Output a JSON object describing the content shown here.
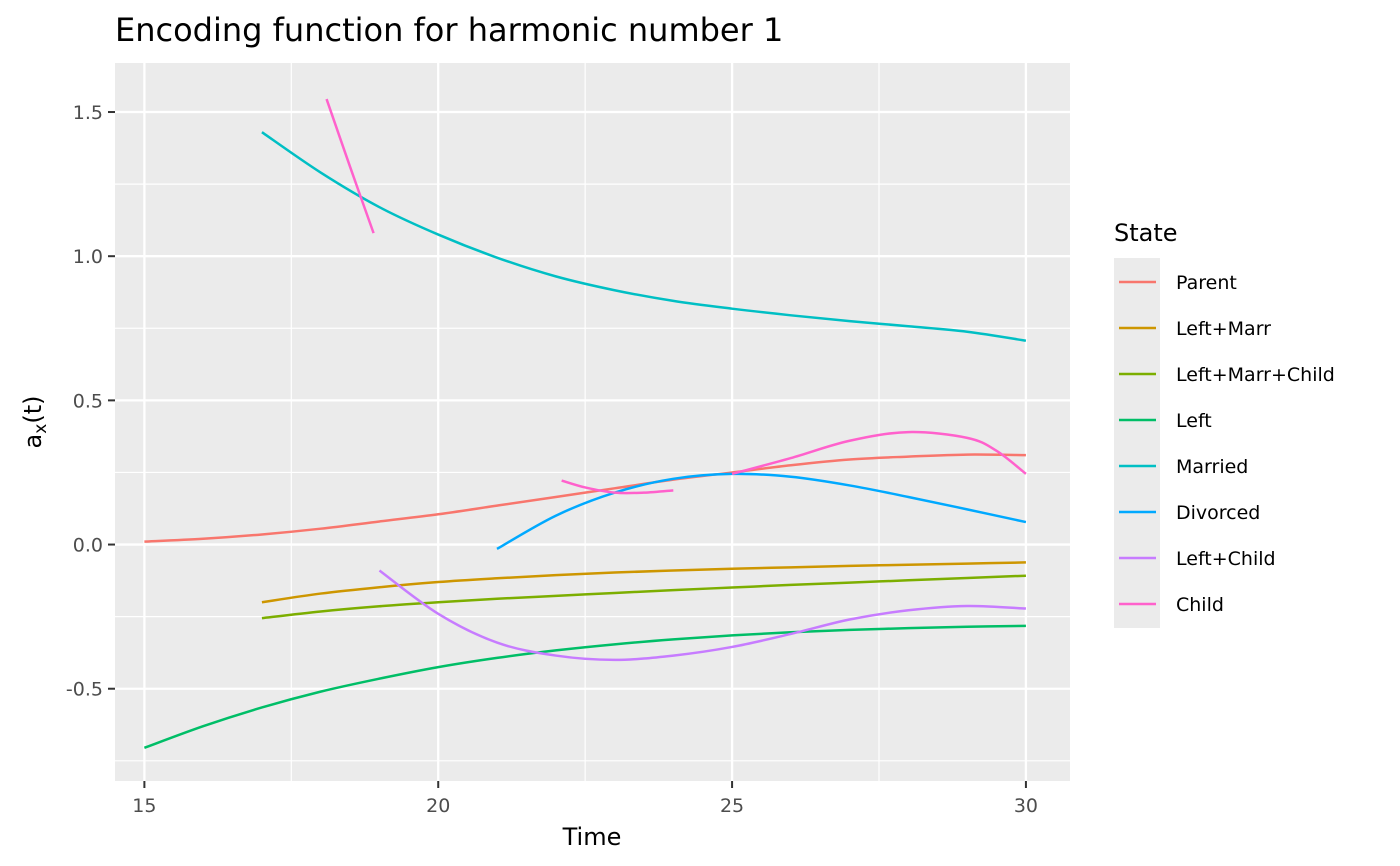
{
  "chart_data": {
    "type": "line",
    "title": "Encoding function for harmonic number 1",
    "xlabel": "Time",
    "ylabel_base": "a",
    "ylabel_sub": "x",
    "ylabel_rest": "(t)",
    "xlim": [
      14.5,
      30.75
    ],
    "ylim": [
      -0.82,
      1.67
    ],
    "x_ticks": [
      15,
      20,
      25,
      30
    ],
    "x_tick_labels": [
      "15",
      "20",
      "25",
      "30"
    ],
    "y_ticks": [
      -0.5,
      0.0,
      0.5,
      1.0,
      1.5
    ],
    "y_tick_labels": [
      "-0.5",
      "0.0",
      "0.5",
      "1.0",
      "1.5"
    ],
    "grid": true,
    "legend": {
      "title": "State",
      "position": "right"
    },
    "series": [
      {
        "name": "Parent",
        "color": "#F8766D",
        "x": [
          15,
          16,
          17,
          18,
          19,
          20,
          21,
          22,
          23,
          24,
          25,
          26,
          27,
          28,
          29,
          30
        ],
        "y": [
          0.01,
          0.02,
          0.035,
          0.055,
          0.08,
          0.105,
          0.135,
          0.165,
          0.195,
          0.225,
          0.25,
          0.275,
          0.295,
          0.305,
          0.312,
          0.31
        ]
      },
      {
        "name": "Left+Marr",
        "color": "#CD9600",
        "x": [
          17,
          18,
          19,
          20,
          21,
          22,
          23,
          24,
          25,
          26,
          27,
          28,
          29,
          30
        ],
        "y": [
          -0.2,
          -0.17,
          -0.148,
          -0.13,
          -0.117,
          -0.106,
          -0.097,
          -0.09,
          -0.084,
          -0.079,
          -0.074,
          -0.07,
          -0.066,
          -0.062
        ]
      },
      {
        "name": "Left+Marr+Child",
        "color": "#7CAE00",
        "x": [
          17,
          18,
          19,
          20,
          21,
          22,
          23,
          24,
          25,
          26,
          27,
          28,
          29,
          30
        ],
        "y": [
          -0.255,
          -0.232,
          -0.214,
          -0.2,
          -0.188,
          -0.178,
          -0.168,
          -0.158,
          -0.149,
          -0.14,
          -0.132,
          -0.124,
          -0.116,
          -0.108
        ]
      },
      {
        "name": "Left",
        "color": "#00BE67",
        "x": [
          15,
          16,
          17,
          18,
          19,
          20,
          21,
          22,
          23,
          24,
          25,
          26,
          27,
          28,
          29,
          30
        ],
        "y": [
          -0.705,
          -0.63,
          -0.565,
          -0.51,
          -0.465,
          -0.425,
          -0.393,
          -0.367,
          -0.346,
          -0.329,
          -0.315,
          -0.304,
          -0.296,
          -0.29,
          -0.285,
          -0.282
        ]
      },
      {
        "name": "Married",
        "color": "#00BFC4",
        "x": [
          17,
          18,
          19,
          20,
          21,
          22,
          23,
          24,
          25,
          26,
          27,
          28,
          29,
          30
        ],
        "y": [
          1.43,
          1.29,
          1.17,
          1.075,
          0.995,
          0.93,
          0.882,
          0.845,
          0.818,
          0.795,
          0.775,
          0.757,
          0.738,
          0.707
        ]
      },
      {
        "name": "Divorced",
        "color": "#00A9FF",
        "x": [
          21,
          22,
          23,
          24,
          25,
          26,
          27,
          28,
          29,
          30
        ],
        "y": [
          -0.015,
          0.1,
          0.18,
          0.228,
          0.245,
          0.235,
          0.205,
          0.165,
          0.122,
          0.078
        ]
      },
      {
        "name": "Left+Child",
        "color": "#C77CFF",
        "x": [
          19,
          20,
          21,
          22,
          23,
          24,
          25,
          26,
          27,
          28,
          29,
          30
        ],
        "y": [
          -0.09,
          -0.24,
          -0.34,
          -0.385,
          -0.4,
          -0.385,
          -0.355,
          -0.31,
          -0.26,
          -0.228,
          -0.213,
          -0.222
        ]
      },
      {
        "name": "Child",
        "color": "#FF61CC",
        "segments": [
          {
            "x": [
              18.1,
              18.5,
              18.9
            ],
            "y": [
              1.545,
              1.31,
              1.08
            ]
          },
          {
            "x": [
              22.1,
              22.5,
              23.0,
              23.5,
              24.0
            ],
            "y": [
              0.222,
              0.198,
              0.18,
              0.18,
              0.188
            ]
          },
          {
            "x": [
              25.0,
              26.0,
              27.0,
              28.0,
              29.0,
              29.5,
              30.0
            ],
            "y": [
              0.245,
              0.3,
              0.36,
              0.39,
              0.37,
              0.325,
              0.245
            ]
          }
        ]
      }
    ]
  }
}
